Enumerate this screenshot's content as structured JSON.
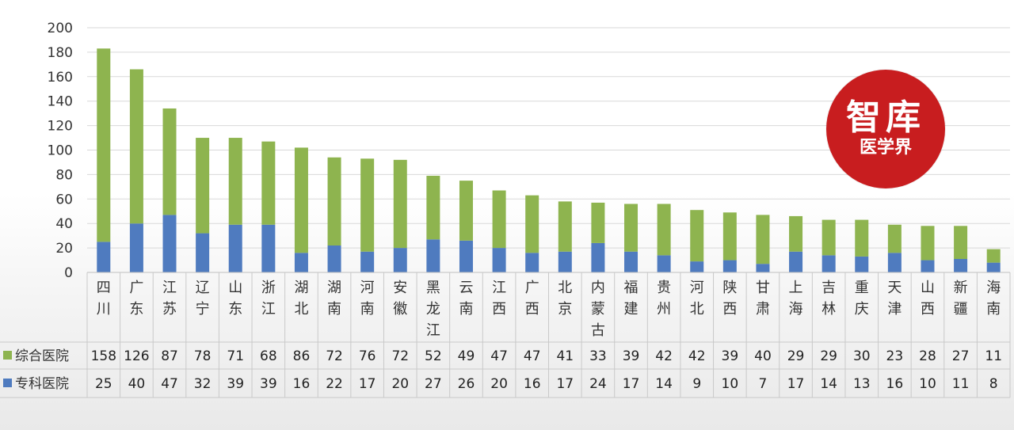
{
  "chart_data": {
    "type": "bar",
    "stacked": true,
    "categories": [
      [
        "四",
        "川"
      ],
      [
        "广",
        "东"
      ],
      [
        "江",
        "苏"
      ],
      [
        "辽",
        "宁"
      ],
      [
        "山",
        "东"
      ],
      [
        "浙",
        "江"
      ],
      [
        "湖",
        "北"
      ],
      [
        "湖",
        "南"
      ],
      [
        "河",
        "南"
      ],
      [
        "安",
        "徽"
      ],
      [
        "黑",
        "龙",
        "江"
      ],
      [
        "云",
        "南"
      ],
      [
        "江",
        "西"
      ],
      [
        "广",
        "西"
      ],
      [
        "北",
        "京"
      ],
      [
        "内",
        "蒙",
        "古"
      ],
      [
        "福",
        "建"
      ],
      [
        "贵",
        "州"
      ],
      [
        "河",
        "北"
      ],
      [
        "陕",
        "西"
      ],
      [
        "甘",
        "肃"
      ],
      [
        "上",
        "海"
      ],
      [
        "吉",
        "林"
      ],
      [
        "重",
        "庆"
      ],
      [
        "天",
        "津"
      ],
      [
        "山",
        "西"
      ],
      [
        "新",
        "疆"
      ],
      [
        "海",
        "南"
      ]
    ],
    "series": [
      {
        "name": "专科医院",
        "color": "#4f7bbf",
        "values": [
          25,
          40,
          47,
          32,
          39,
          39,
          16,
          22,
          17,
          20,
          27,
          26,
          20,
          16,
          17,
          24,
          17,
          14,
          9,
          10,
          7,
          17,
          14,
          13,
          16,
          10,
          11,
          8
        ]
      },
      {
        "name": "综合医院",
        "color": "#8eb44f",
        "values": [
          158,
          126,
          87,
          78,
          71,
          68,
          86,
          72,
          76,
          72,
          52,
          49,
          47,
          47,
          41,
          33,
          39,
          42,
          42,
          39,
          40,
          29,
          29,
          30,
          23,
          28,
          27,
          11
        ]
      }
    ],
    "table_rows": [
      {
        "series_index": 1,
        "label": "综合医院"
      },
      {
        "series_index": 0,
        "label": "专科医院"
      }
    ],
    "ylim": [
      0,
      200
    ],
    "yticks": [
      "0",
      "20",
      "40",
      "60",
      "80",
      "100",
      "120",
      "140",
      "160",
      "180",
      "200"
    ],
    "grid": true
  },
  "badge": {
    "title": "智库",
    "subtitle": "医学界"
  }
}
